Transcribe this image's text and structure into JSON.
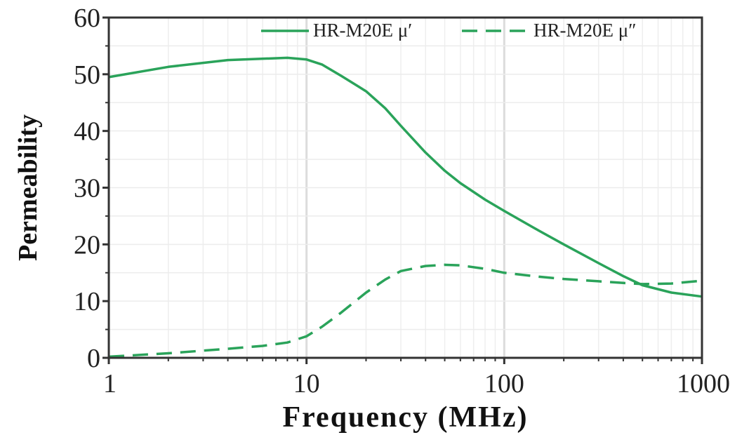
{
  "chart_data": {
    "type": "line",
    "title": "",
    "xlabel": "Frequency (MHz)",
    "ylabel": "Permeability",
    "x_scale": "log",
    "xlim": [
      1,
      1000
    ],
    "ylim": [
      0,
      60
    ],
    "x_ticks": [
      "1",
      "10",
      "100",
      "1000"
    ],
    "y_ticks": [
      "0",
      "10",
      "20",
      "30",
      "40",
      "50",
      "60"
    ],
    "grid": true,
    "legend_position": "top-right",
    "series": [
      {
        "name": "HR-M20E μ′",
        "style": "solid",
        "color": "#2aa35a",
        "x": [
          1,
          2,
          4,
          8,
          10,
          12,
          15,
          20,
          25,
          30,
          40,
          50,
          60,
          80,
          100,
          150,
          200,
          300,
          400,
          500,
          700,
          1000
        ],
        "y": [
          49.5,
          51.3,
          52.5,
          52.9,
          52.6,
          51.7,
          49.7,
          47.0,
          44.0,
          40.9,
          36.2,
          33.0,
          30.8,
          27.9,
          25.9,
          22.4,
          20.0,
          16.7,
          14.4,
          12.8,
          11.5,
          10.8
        ]
      },
      {
        "name": "HR-M20E μ″",
        "style": "dashed",
        "color": "#2aa35a",
        "x": [
          1,
          2,
          4,
          6,
          8,
          10,
          12,
          15,
          20,
          25,
          30,
          40,
          50,
          60,
          80,
          100,
          150,
          200,
          300,
          400,
          500,
          700,
          1000
        ],
        "y": [
          0.2,
          0.8,
          1.6,
          2.1,
          2.7,
          3.8,
          5.5,
          8.0,
          11.5,
          13.8,
          15.3,
          16.2,
          16.4,
          16.3,
          15.7,
          15.0,
          14.3,
          13.9,
          13.5,
          13.2,
          13.0,
          13.1,
          13.6
        ]
      }
    ]
  }
}
